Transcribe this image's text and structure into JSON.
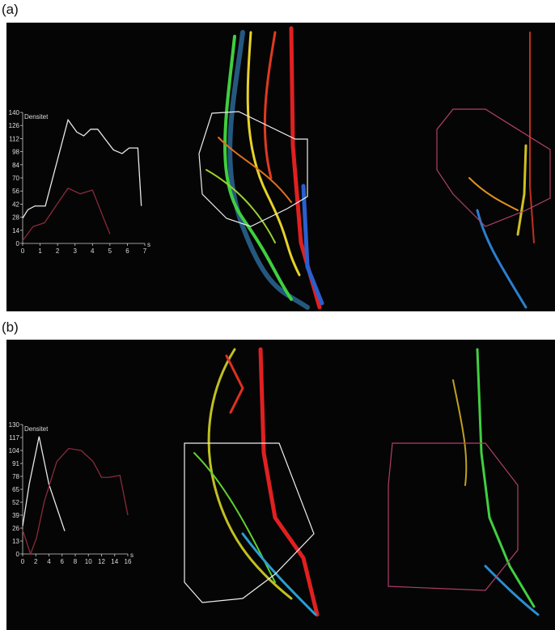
{
  "panels": [
    {
      "label": "(a)"
    },
    {
      "label": "(b)"
    }
  ],
  "chart_data": [
    {
      "type": "line",
      "ylabel": "Densitet",
      "xlabel": "s",
      "xlim": [
        0,
        7
      ],
      "ylim": [
        0,
        140
      ],
      "xticks": [
        0,
        1,
        2,
        3,
        4,
        5,
        6,
        7
      ],
      "yticks": [
        0,
        14,
        28,
        42,
        56,
        70,
        84,
        98,
        112,
        126,
        140
      ],
      "series": [
        {
          "color": "#e8e8e8",
          "x": [
            0,
            0.3,
            0.7,
            1.3,
            2.6,
            3.1,
            3.5,
            3.9,
            4.3,
            5.2,
            5.7,
            6.1,
            6.6,
            6.8
          ],
          "values": [
            27,
            36,
            40,
            40,
            132,
            119,
            115,
            122,
            122,
            100,
            96,
            102,
            102,
            40
          ]
        },
        {
          "color": "#8b2a3a",
          "x": [
            0,
            0.6,
            1.25,
            1.9,
            2.6,
            3.3,
            4.0,
            5.0
          ],
          "values": [
            3,
            18,
            22,
            40,
            59,
            53,
            57,
            10
          ]
        }
      ]
    },
    {
      "type": "line",
      "ylabel": "Densitet",
      "xlabel": "s",
      "xlim": [
        0,
        16
      ],
      "ylim": [
        0,
        130
      ],
      "xticks": [
        0,
        2,
        4,
        6,
        8,
        10,
        12,
        14,
        16
      ],
      "yticks": [
        0,
        13,
        26,
        39,
        52,
        65,
        78,
        91,
        104,
        117,
        130
      ],
      "series": [
        {
          "color": "#e8e8e8",
          "x": [
            0,
            1,
            2.5,
            4,
            6.4
          ],
          "values": [
            28,
            70,
            118,
            70,
            23
          ]
        },
        {
          "color": "#8b2a3a",
          "x": [
            0,
            1.2,
            2.1,
            3.3,
            5.2,
            7.0,
            8.9,
            10.7,
            12,
            13.2,
            14.8,
            16
          ],
          "values": [
            24,
            0,
            16,
            53,
            93,
            106,
            104,
            93,
            77,
            77,
            79,
            39
          ]
        }
      ]
    }
  ]
}
